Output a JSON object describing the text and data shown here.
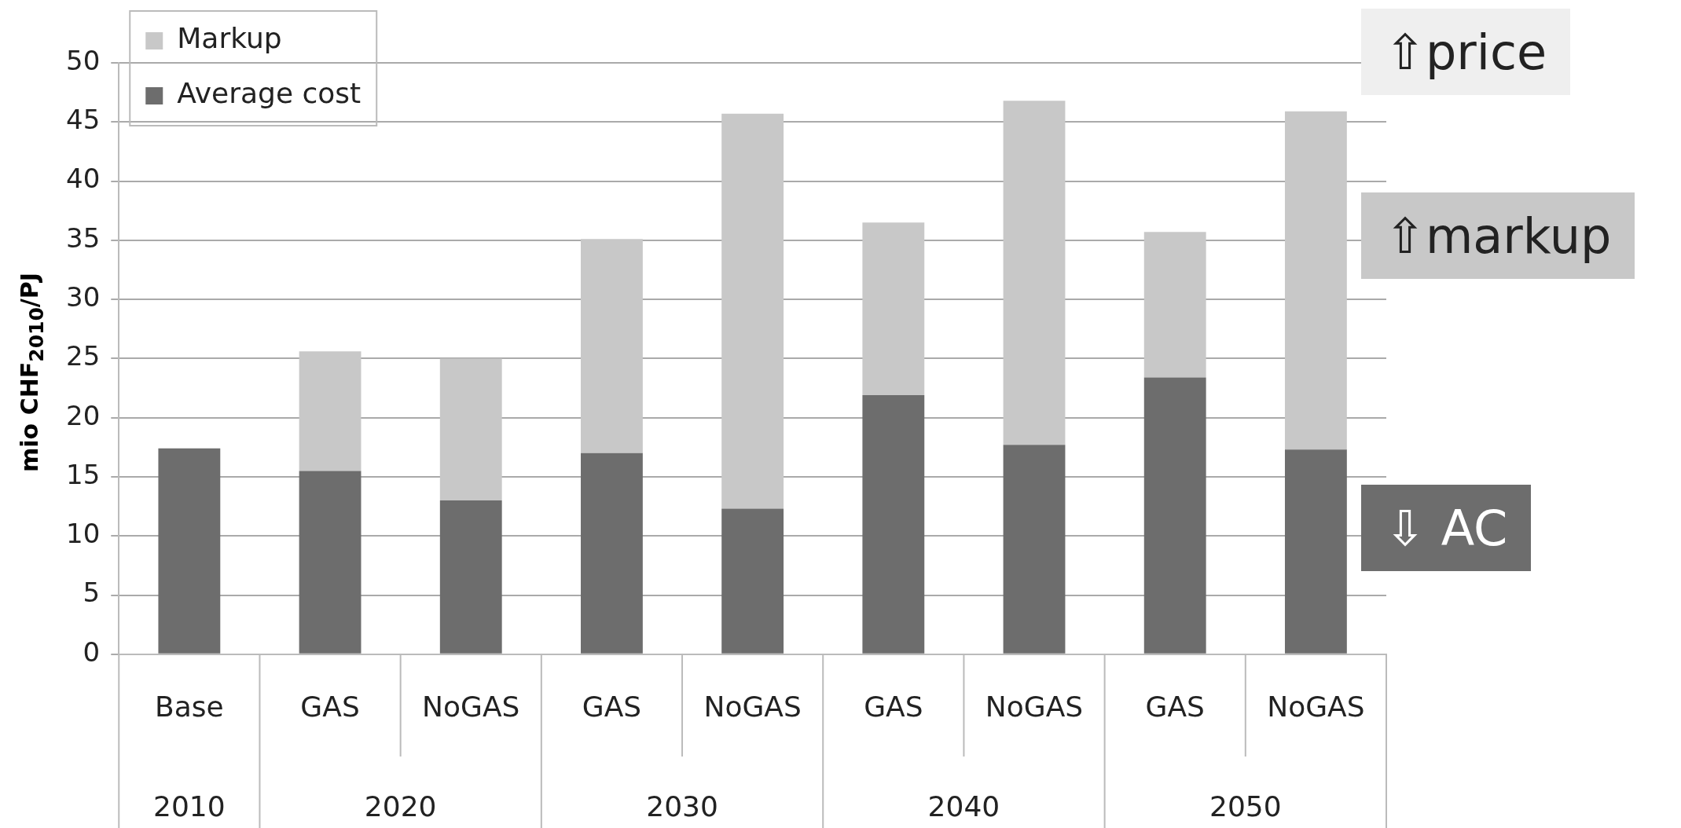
{
  "chart_data": {
    "type": "bar",
    "stacked": true,
    "ylabel": "mio CHF$_{2010}$/PJ",
    "categories": [
      "Base",
      "GAS",
      "NoGAS",
      "GAS",
      "NoGAS",
      "GAS",
      "NoGAS",
      "GAS",
      "NoGAS"
    ],
    "series": [
      {
        "name": "Average cost",
        "color": "#6d6d6d",
        "values": [
          17.4,
          15.5,
          13.0,
          17.0,
          12.3,
          21.9,
          17.7,
          23.4,
          17.3
        ]
      },
      {
        "name": "Markup",
        "color": "#c8c8c8",
        "values": [
          0,
          10.1,
          12.0,
          18.1,
          33.4,
          14.6,
          29.1,
          12.3,
          28.6
        ]
      }
    ],
    "ylim": [
      0,
      50
    ],
    "yticks": [
      0,
      5,
      10,
      15,
      20,
      25,
      30,
      35,
      40,
      45,
      50
    ],
    "grid": "y",
    "legend": "top left",
    "annotations": [
      "2010",
      "2020",
      "2030",
      "2040",
      "2050",
      "⇧price",
      "⇧markup",
      "⇩ AC"
    ]
  }
}
